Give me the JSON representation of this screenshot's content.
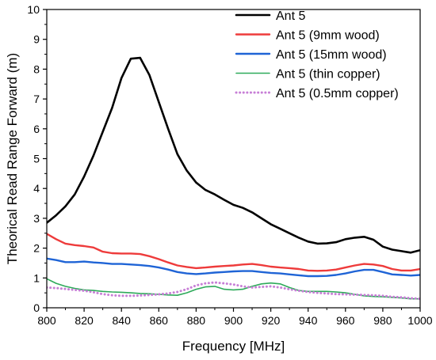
{
  "chart_data": {
    "type": "line",
    "title": "",
    "xlabel": "Frequency [MHz]",
    "ylabel": "Theorical Read Range Forward (m)",
    "xlim": [
      800,
      1000
    ],
    "ylim": [
      0,
      10
    ],
    "x_ticks": [
      "800",
      "820",
      "840",
      "860",
      "880",
      "900",
      "920",
      "940",
      "960",
      "980",
      "1000"
    ],
    "y_ticks": [
      "0",
      "1",
      "2",
      "3",
      "4",
      "5",
      "6",
      "7",
      "8",
      "9",
      "10"
    ],
    "grid": false,
    "legend_position": "top-right",
    "series": [
      {
        "name": "Ant 5",
        "color": "#000000",
        "style": "solid",
        "x": [
          800,
          805,
          810,
          815,
          820,
          825,
          830,
          835,
          840,
          845,
          850,
          855,
          860,
          865,
          870,
          875,
          880,
          885,
          890,
          895,
          900,
          905,
          910,
          915,
          920,
          925,
          930,
          935,
          940,
          945,
          950,
          955,
          960,
          965,
          970,
          975,
          980,
          985,
          990,
          995,
          1000
        ],
        "y": [
          2.85,
          3.1,
          3.4,
          3.8,
          4.4,
          5.1,
          5.9,
          6.7,
          7.7,
          8.35,
          8.38,
          7.8,
          6.9,
          6.0,
          5.15,
          4.6,
          4.2,
          3.95,
          3.8,
          3.62,
          3.45,
          3.35,
          3.2,
          3.0,
          2.8,
          2.65,
          2.5,
          2.35,
          2.22,
          2.15,
          2.16,
          2.2,
          2.3,
          2.35,
          2.38,
          2.28,
          2.05,
          1.95,
          1.9,
          1.85,
          1.93
        ]
      },
      {
        "name": "Ant 5 (9mm wood)",
        "color": "#ee3b3b",
        "style": "solid",
        "x": [
          800,
          805,
          810,
          815,
          820,
          825,
          830,
          835,
          840,
          845,
          850,
          855,
          860,
          865,
          870,
          875,
          880,
          885,
          890,
          895,
          900,
          905,
          910,
          915,
          920,
          925,
          930,
          935,
          940,
          945,
          950,
          955,
          960,
          965,
          970,
          975,
          980,
          985,
          990,
          995,
          1000
        ],
        "y": [
          2.48,
          2.3,
          2.15,
          2.1,
          2.07,
          2.02,
          1.88,
          1.83,
          1.82,
          1.82,
          1.8,
          1.73,
          1.63,
          1.52,
          1.42,
          1.37,
          1.33,
          1.35,
          1.38,
          1.4,
          1.42,
          1.45,
          1.47,
          1.43,
          1.38,
          1.35,
          1.33,
          1.3,
          1.25,
          1.24,
          1.25,
          1.28,
          1.35,
          1.42,
          1.47,
          1.45,
          1.4,
          1.3,
          1.25,
          1.25,
          1.3
        ]
      },
      {
        "name": "Ant 5 (15mm wood)",
        "color": "#1f64d6",
        "style": "solid",
        "x": [
          800,
          805,
          810,
          815,
          820,
          825,
          830,
          835,
          840,
          845,
          850,
          855,
          860,
          865,
          870,
          875,
          880,
          885,
          890,
          895,
          900,
          905,
          910,
          915,
          920,
          925,
          930,
          935,
          940,
          945,
          950,
          955,
          960,
          965,
          970,
          975,
          980,
          985,
          990,
          995,
          1000
        ],
        "y": [
          1.65,
          1.6,
          1.53,
          1.53,
          1.55,
          1.52,
          1.5,
          1.47,
          1.47,
          1.45,
          1.43,
          1.4,
          1.35,
          1.28,
          1.2,
          1.15,
          1.13,
          1.15,
          1.18,
          1.2,
          1.22,
          1.23,
          1.23,
          1.2,
          1.17,
          1.15,
          1.12,
          1.09,
          1.06,
          1.06,
          1.07,
          1.1,
          1.15,
          1.22,
          1.27,
          1.27,
          1.2,
          1.12,
          1.1,
          1.08,
          1.1
        ]
      },
      {
        "name": "Ant 5 (thin copper)",
        "color": "#2eaa5a",
        "style": "solid",
        "x": [
          800,
          805,
          810,
          815,
          820,
          825,
          830,
          835,
          840,
          845,
          850,
          855,
          860,
          865,
          870,
          875,
          880,
          885,
          890,
          895,
          900,
          905,
          910,
          915,
          920,
          925,
          930,
          935,
          940,
          945,
          950,
          955,
          960,
          965,
          970,
          975,
          980,
          985,
          990,
          995,
          1000
        ],
        "y": [
          0.97,
          0.82,
          0.72,
          0.65,
          0.6,
          0.58,
          0.55,
          0.53,
          0.52,
          0.5,
          0.48,
          0.47,
          0.45,
          0.43,
          0.42,
          0.5,
          0.62,
          0.7,
          0.72,
          0.62,
          0.6,
          0.62,
          0.72,
          0.8,
          0.83,
          0.8,
          0.68,
          0.58,
          0.55,
          0.55,
          0.55,
          0.53,
          0.5,
          0.45,
          0.4,
          0.38,
          0.37,
          0.35,
          0.33,
          0.3,
          0.3
        ]
      },
      {
        "name": "Ant 5 (0.5mm copper)",
        "color": "#c77fd6",
        "style": "dotted",
        "x": [
          800,
          805,
          810,
          815,
          820,
          825,
          830,
          835,
          840,
          845,
          850,
          855,
          860,
          865,
          870,
          875,
          880,
          885,
          890,
          895,
          900,
          905,
          910,
          915,
          920,
          925,
          930,
          935,
          940,
          945,
          950,
          955,
          960,
          965,
          970,
          975,
          980,
          985,
          990,
          995,
          1000
        ],
        "y": [
          0.68,
          0.66,
          0.63,
          0.6,
          0.57,
          0.52,
          0.46,
          0.42,
          0.4,
          0.4,
          0.41,
          0.43,
          0.45,
          0.48,
          0.53,
          0.62,
          0.75,
          0.82,
          0.85,
          0.82,
          0.78,
          0.72,
          0.68,
          0.7,
          0.72,
          0.68,
          0.62,
          0.57,
          0.53,
          0.5,
          0.48,
          0.46,
          0.45,
          0.44,
          0.43,
          0.42,
          0.4,
          0.37,
          0.35,
          0.32,
          0.3
        ]
      }
    ]
  }
}
